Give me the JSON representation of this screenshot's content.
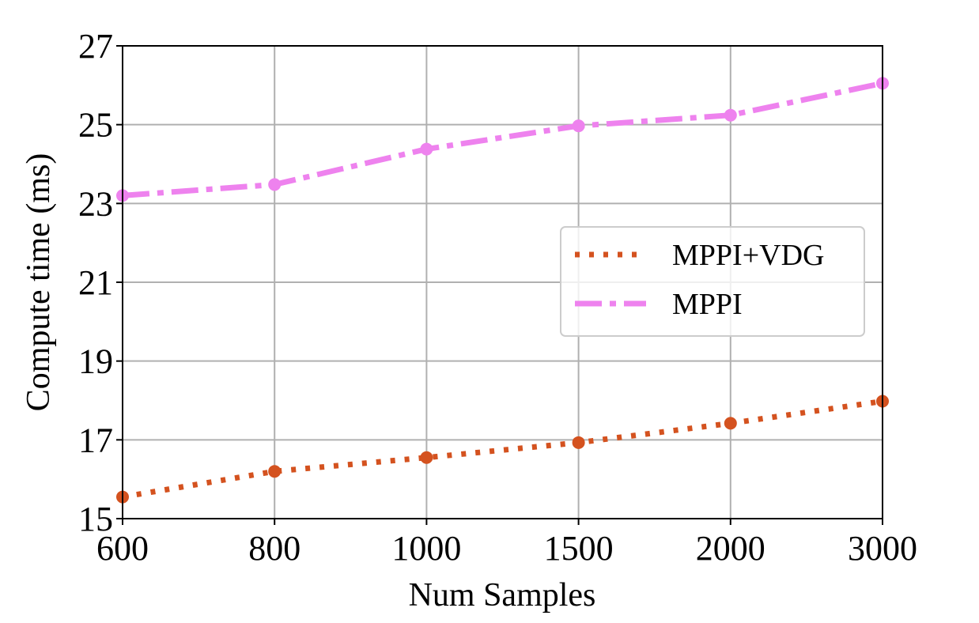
{
  "chart_data": {
    "type": "line",
    "xlabel": "Num Samples",
    "ylabel": "Compute time (ms)",
    "categories": [
      "600",
      "800",
      "1000",
      "1500",
      "2000",
      "3000"
    ],
    "ylim": [
      15,
      27
    ],
    "yticks": [
      15,
      17,
      19,
      21,
      23,
      25,
      27
    ],
    "grid": true,
    "legend_position": "center-right",
    "series": [
      {
        "name": "MPPI+VDG",
        "color": "#d4521f",
        "linestyle": "dotted",
        "values": [
          15.55,
          16.2,
          16.55,
          16.93,
          17.42,
          17.98
        ]
      },
      {
        "name": "MPPI",
        "color": "#ee82ee",
        "linestyle": "dashdot",
        "values": [
          23.2,
          23.48,
          24.38,
          24.97,
          25.24,
          26.05
        ]
      }
    ]
  }
}
